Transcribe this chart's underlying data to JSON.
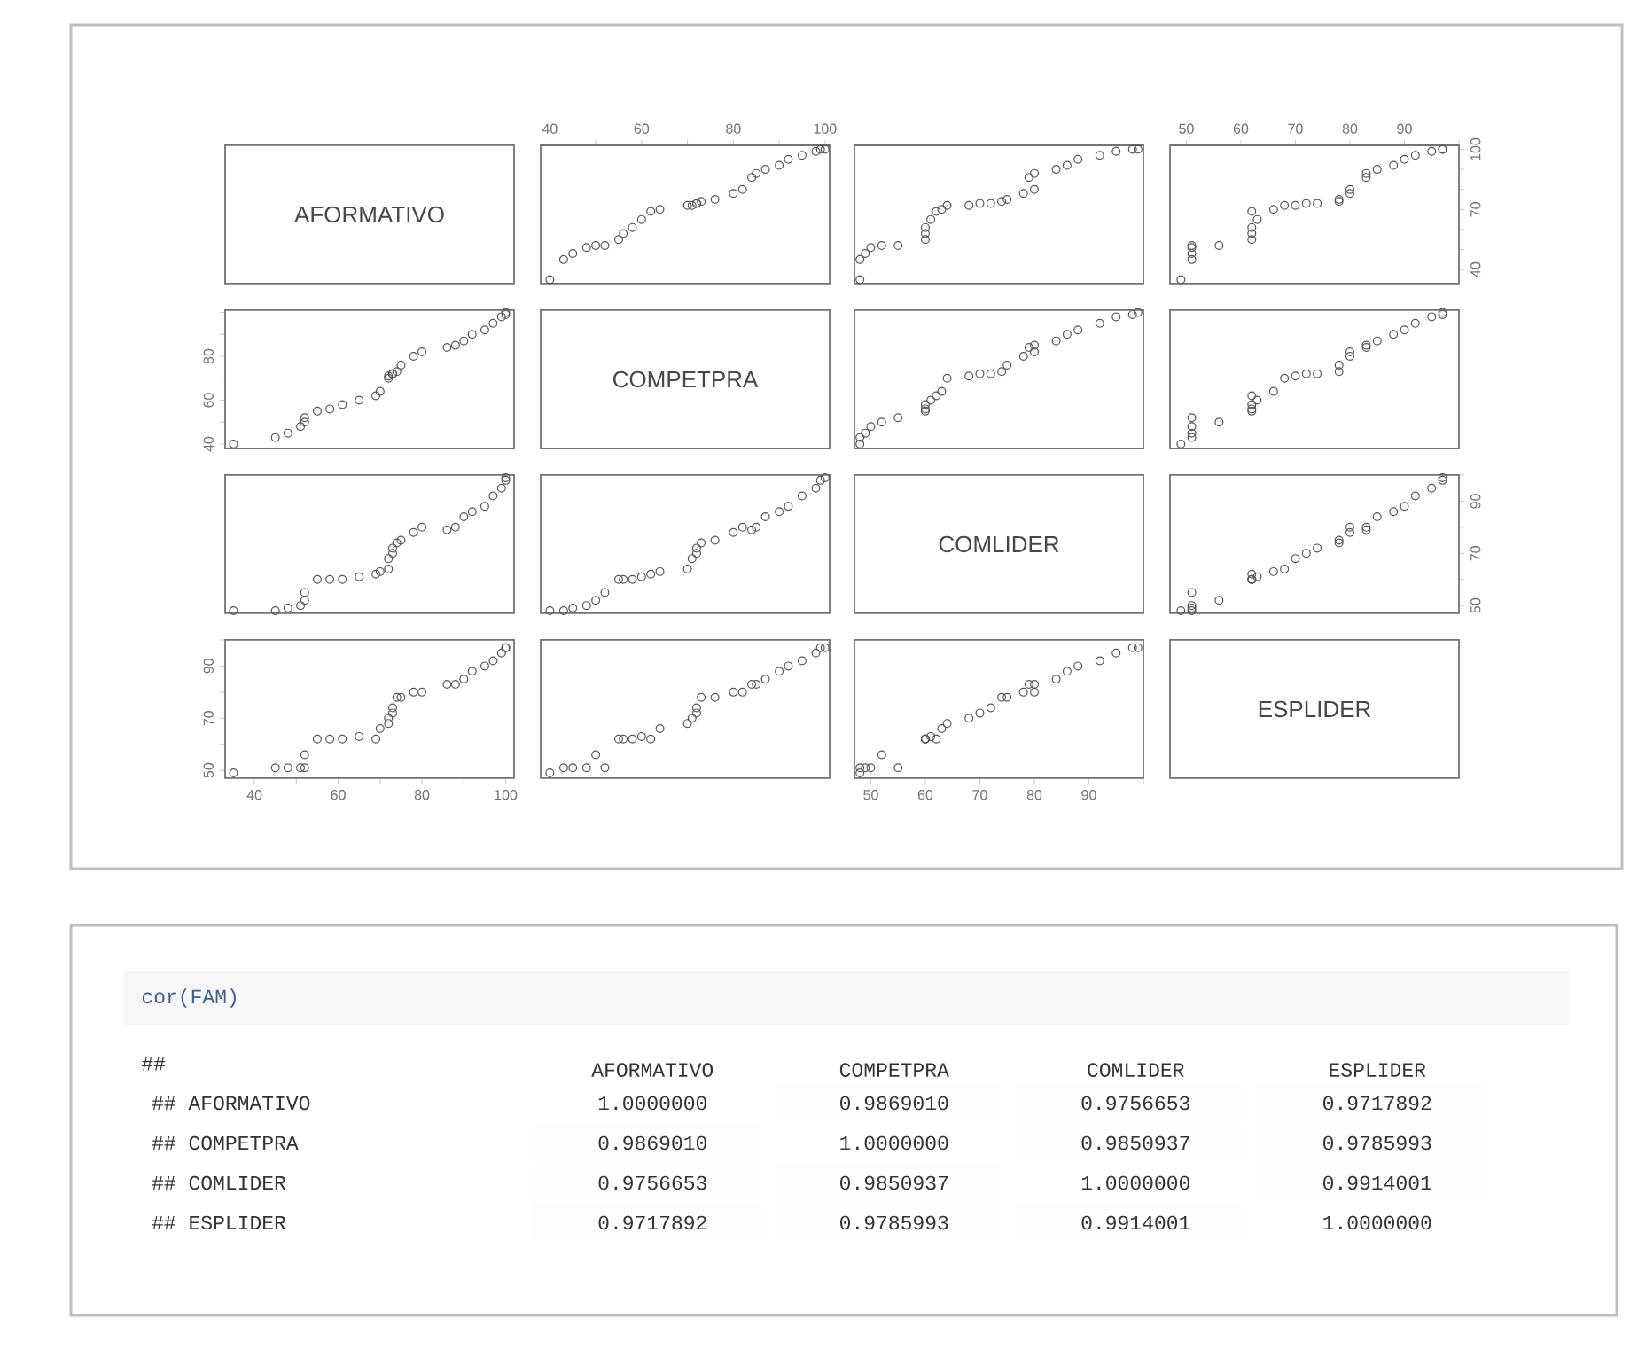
{
  "chart_data": [
    {
      "type": "other",
      "title": "AFORMATIVO"
    },
    {
      "type": "scatter",
      "marker": "circle",
      "color": "#555555",
      "tick_labels": "x",
      "xlim": [
        38,
        101
      ],
      "ylim": [
        33,
        102
      ],
      "xticks": [
        40,
        {
          "value": 50,
          "label": null
        },
        60,
        {
          "value": 70,
          "label": null
        },
        80,
        {
          "value": 90,
          "label": null
        },
        100
      ],
      "x": [
        40,
        43,
        45,
        48,
        50,
        52,
        55,
        56,
        58,
        60,
        62,
        64,
        70,
        71,
        72,
        72,
        73,
        76,
        80,
        82,
        84,
        85,
        87,
        90,
        92,
        95,
        98,
        99,
        100
      ],
      "values": [
        35,
        45,
        48,
        51,
        52,
        52,
        55,
        58,
        61,
        65,
        69,
        70,
        72,
        72,
        73,
        73,
        74,
        75,
        78,
        80,
        86,
        88,
        90,
        92,
        95,
        97,
        99,
        100,
        100
      ]
    },
    {
      "type": "scatter",
      "marker": "circle",
      "color": "#555555",
      "tick_labels": false,
      "xlim": [
        47,
        100
      ],
      "ylim": [
        33,
        102
      ],
      "x": [
        48,
        48,
        49,
        50,
        52,
        55,
        60,
        60,
        60,
        61,
        62,
        63,
        64,
        68,
        70,
        72,
        74,
        75,
        78,
        80,
        79,
        80,
        84,
        86,
        88,
        92,
        95,
        98,
        99
      ],
      "values": [
        35,
        45,
        48,
        51,
        52,
        52,
        55,
        58,
        61,
        65,
        69,
        70,
        72,
        72,
        73,
        73,
        74,
        75,
        78,
        80,
        86,
        88,
        90,
        92,
        95,
        97,
        99,
        100,
        100
      ]
    },
    {
      "type": "scatter",
      "marker": "circle",
      "color": "#555555",
      "xlim": [
        47,
        100
      ],
      "ylim": [
        33,
        102
      ],
      "xticks": [
        50,
        60,
        70,
        80,
        90,
        {
          "value": 100,
          "label": null
        }
      ],
      "yticks": [
        40,
        {
          "value": 50,
          "label": null
        },
        {
          "value": 60,
          "label": null
        },
        70,
        {
          "value": 80,
          "label": null
        },
        {
          "value": 90,
          "label": null
        },
        100
      ],
      "x": [
        49,
        51,
        51,
        51,
        56,
        51,
        62,
        62,
        62,
        63,
        62,
        66,
        68,
        70,
        72,
        74,
        78,
        78,
        80,
        80,
        83,
        83,
        85,
        88,
        90,
        92,
        95,
        97,
        97
      ],
      "values": [
        35,
        45,
        48,
        51,
        52,
        52,
        55,
        58,
        61,
        65,
        69,
        70,
        72,
        72,
        73,
        73,
        74,
        75,
        78,
        80,
        86,
        88,
        90,
        92,
        95,
        97,
        99,
        100,
        100
      ]
    },
    {
      "type": "scatter",
      "marker": "circle",
      "color": "#555555",
      "tick_labels": "y",
      "xlim": [
        33,
        102
      ],
      "ylim": [
        38,
        101
      ],
      "yticks": [
        40,
        {
          "value": 50,
          "label": null
        },
        60,
        {
          "value": 70,
          "label": null
        },
        80,
        {
          "value": 90,
          "label": null
        },
        {
          "value": 100,
          "label": null
        }
      ],
      "x": [
        35,
        45,
        48,
        51,
        52,
        52,
        55,
        58,
        61,
        65,
        69,
        70,
        72,
        72,
        73,
        73,
        74,
        75,
        78,
        80,
        86,
        88,
        90,
        92,
        95,
        97,
        99,
        100,
        100
      ],
      "values": [
        40,
        43,
        45,
        48,
        50,
        52,
        55,
        56,
        58,
        60,
        62,
        64,
        70,
        71,
        72,
        72,
        73,
        76,
        80,
        82,
        84,
        85,
        87,
        90,
        92,
        95,
        98,
        99,
        100
      ]
    },
    {
      "type": "other",
      "title": "COMPETPRA"
    },
    {
      "type": "scatter",
      "marker": "circle",
      "color": "#555555",
      "tick_labels": false,
      "xlim": [
        47,
        100
      ],
      "ylim": [
        38,
        101
      ],
      "x": [
        48,
        48,
        49,
        50,
        52,
        55,
        60,
        60,
        60,
        61,
        62,
        63,
        64,
        68,
        70,
        72,
        74,
        75,
        78,
        80,
        79,
        80,
        84,
        86,
        88,
        92,
        95,
        98,
        99
      ],
      "values": [
        40,
        43,
        45,
        48,
        50,
        52,
        55,
        56,
        58,
        60,
        62,
        64,
        70,
        71,
        72,
        72,
        73,
        76,
        80,
        82,
        84,
        85,
        87,
        90,
        92,
        95,
        98,
        99,
        100
      ]
    },
    {
      "type": "scatter",
      "marker": "circle",
      "color": "#555555",
      "tick_labels": false,
      "xlim": [
        47,
        100
      ],
      "ylim": [
        38,
        101
      ],
      "x": [
        49,
        51,
        51,
        51,
        56,
        51,
        62,
        62,
        62,
        63,
        62,
        66,
        68,
        70,
        72,
        74,
        78,
        78,
        80,
        80,
        83,
        83,
        85,
        88,
        90,
        92,
        95,
        97,
        97
      ],
      "values": [
        40,
        43,
        45,
        48,
        50,
        52,
        55,
        56,
        58,
        60,
        62,
        64,
        70,
        71,
        72,
        72,
        73,
        76,
        80,
        82,
        84,
        85,
        87,
        90,
        92,
        95,
        98,
        99,
        100
      ]
    },
    {
      "type": "scatter",
      "marker": "circle",
      "color": "#555555",
      "tick_labels": false,
      "xlim": [
        33,
        102
      ],
      "ylim": [
        47,
        100
      ],
      "x": [
        35,
        45,
        48,
        51,
        52,
        52,
        55,
        58,
        61,
        65,
        69,
        70,
        72,
        72,
        73,
        73,
        74,
        75,
        78,
        80,
        86,
        88,
        90,
        92,
        95,
        97,
        99,
        100,
        100
      ],
      "values": [
        48,
        48,
        49,
        50,
        52,
        55,
        60,
        60,
        60,
        61,
        62,
        63,
        64,
        68,
        70,
        72,
        74,
        75,
        78,
        80,
        79,
        80,
        84,
        86,
        88,
        92,
        95,
        98,
        99
      ]
    },
    {
      "type": "scatter",
      "marker": "circle",
      "color": "#555555",
      "tick_labels": false,
      "xlim": [
        38,
        101
      ],
      "ylim": [
        47,
        100
      ],
      "x": [
        40,
        43,
        45,
        48,
        50,
        52,
        55,
        56,
        58,
        60,
        62,
        64,
        70,
        71,
        72,
        72,
        73,
        76,
        80,
        82,
        84,
        85,
        87,
        90,
        92,
        95,
        98,
        99,
        100
      ],
      "values": [
        48,
        48,
        49,
        50,
        52,
        55,
        60,
        60,
        60,
        61,
        62,
        63,
        64,
        68,
        70,
        72,
        74,
        75,
        78,
        80,
        79,
        80,
        84,
        86,
        88,
        92,
        95,
        98,
        99
      ]
    },
    {
      "type": "other",
      "title": "COMLIDER"
    },
    {
      "type": "scatter",
      "marker": "circle",
      "color": "#555555",
      "tick_labels": "y",
      "xlim": [
        47,
        100
      ],
      "ylim": [
        47,
        100
      ],
      "yticks": [
        50,
        {
          "value": 60,
          "label": null
        },
        70,
        {
          "value": 80,
          "label": null
        },
        90,
        {
          "value": 100,
          "label": null
        }
      ],
      "x": [
        49,
        51,
        51,
        51,
        56,
        51,
        62,
        62,
        62,
        63,
        62,
        66,
        68,
        70,
        72,
        74,
        78,
        78,
        80,
        80,
        83,
        83,
        85,
        88,
        90,
        92,
        95,
        97,
        97
      ],
      "values": [
        48,
        48,
        49,
        50,
        52,
        55,
        60,
        60,
        60,
        61,
        62,
        63,
        64,
        68,
        70,
        72,
        74,
        75,
        78,
        80,
        79,
        80,
        84,
        86,
        88,
        92,
        95,
        98,
        99
      ]
    },
    {
      "type": "scatter",
      "marker": "circle",
      "color": "#555555",
      "xlim": [
        33,
        102
      ],
      "ylim": [
        47,
        100
      ],
      "xticks": [
        40,
        {
          "value": 50,
          "label": null
        },
        60,
        {
          "value": 70,
          "label": null
        },
        80,
        {
          "value": 90,
          "label": null
        },
        100
      ],
      "yticks": [
        50,
        {
          "value": 60,
          "label": null
        },
        70,
        {
          "value": 80,
          "label": null
        },
        90,
        {
          "value": 100,
          "label": null
        }
      ],
      "x": [
        35,
        45,
        48,
        51,
        52,
        52,
        55,
        58,
        61,
        65,
        69,
        70,
        72,
        72,
        73,
        73,
        74,
        75,
        78,
        80,
        86,
        88,
        90,
        92,
        95,
        97,
        99,
        100,
        100
      ],
      "values": [
        49,
        51,
        51,
        51,
        56,
        51,
        62,
        62,
        62,
        63,
        62,
        66,
        68,
        70,
        72,
        74,
        78,
        78,
        80,
        80,
        83,
        83,
        85,
        88,
        90,
        92,
        95,
        97,
        97
      ]
    },
    {
      "type": "scatter",
      "marker": "circle",
      "color": "#555555",
      "tick_labels": false,
      "xlim": [
        38,
        101
      ],
      "ylim": [
        47,
        100
      ],
      "x": [
        40,
        43,
        45,
        48,
        50,
        52,
        55,
        56,
        58,
        60,
        62,
        64,
        70,
        71,
        72,
        72,
        73,
        76,
        80,
        82,
        84,
        85,
        87,
        90,
        92,
        95,
        98,
        99,
        100
      ],
      "values": [
        49,
        51,
        51,
        51,
        56,
        51,
        62,
        62,
        62,
        63,
        62,
        66,
        68,
        70,
        72,
        74,
        78,
        78,
        80,
        80,
        83,
        83,
        85,
        88,
        90,
        92,
        95,
        97,
        97
      ]
    },
    {
      "type": "scatter",
      "marker": "circle",
      "color": "#555555",
      "tick_labels": "x",
      "xlim": [
        47,
        100
      ],
      "ylim": [
        47,
        100
      ],
      "xticks": [
        50,
        60,
        70,
        80,
        90,
        {
          "value": 100,
          "label": null
        }
      ],
      "x": [
        48,
        48,
        49,
        50,
        52,
        55,
        60,
        60,
        60,
        61,
        62,
        63,
        64,
        68,
        70,
        72,
        74,
        75,
        78,
        80,
        79,
        80,
        84,
        86,
        88,
        92,
        95,
        98,
        99
      ],
      "values": [
        49,
        51,
        51,
        51,
        56,
        51,
        62,
        62,
        62,
        63,
        62,
        66,
        68,
        70,
        72,
        74,
        78,
        78,
        80,
        80,
        83,
        83,
        85,
        88,
        90,
        92,
        95,
        97,
        97
      ]
    },
    {
      "type": "other",
      "title": "ESPLIDER"
    },
    {
      "type": "heatmap",
      "title": "cor(FAM)",
      "annotations": [
        "##"
      ],
      "categories": [
        "AFORMATIVO",
        "COMPETPRA",
        "COMLIDER",
        "ESPLIDER"
      ],
      "y_categories": [
        "## AFORMATIVO",
        "## COMPETPRA",
        "## COMLIDER",
        "## ESPLIDER"
      ],
      "cells": [
        [
          1.0,
          0.986901,
          0.9756653,
          0.9717892
        ],
        [
          0.986901,
          1.0,
          0.9850937,
          0.9785993
        ],
        [
          0.9756653,
          0.9850937,
          1.0,
          0.9914001
        ],
        [
          0.9717892,
          0.9785993,
          0.9914001,
          1.0
        ]
      ],
      "cell_labels": [
        [
          "1.0000000",
          "0.9869010",
          "0.9756653",
          "0.9717892"
        ],
        [
          "0.9869010",
          "1.0000000",
          "0.9850937",
          "0.9785993"
        ],
        [
          "0.9756653",
          "0.9850937",
          "1.0000000",
          "0.9914001"
        ],
        [
          "0.9717892",
          "0.9785993",
          "0.9914001",
          "1.0000000"
        ]
      ]
    }
  ]
}
